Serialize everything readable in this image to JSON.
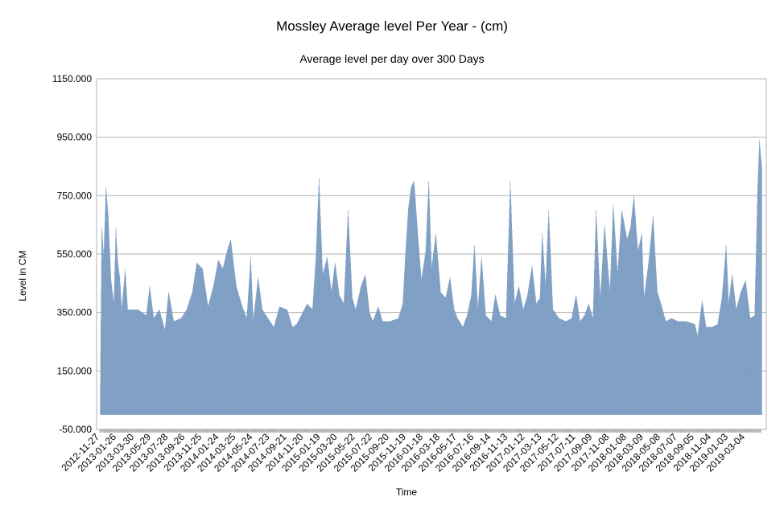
{
  "chart_data": {
    "type": "bar",
    "title": "Mossley Average level Per Year - (cm)",
    "subtitle": "Average level per day over 300 Days",
    "xlabel": "Time",
    "ylabel": "Level in CM",
    "ylim": [
      -50,
      1150
    ],
    "yticks": [
      "-50.000",
      "150.000",
      "350.000",
      "550.000",
      "750.000",
      "950.000",
      "1150.000"
    ],
    "ytick_values": [
      -50,
      150,
      350,
      550,
      750,
      950,
      1150
    ],
    "grid": "horizontal",
    "legend": "none",
    "bar_color": "#7f9fc4",
    "x_start_date": "2012-11-27",
    "x_end_date": "2019-04-30",
    "xtick_labels": [
      "2012-11-27",
      "2013-01-26",
      "2013-03-30",
      "2013-05-29",
      "2013-07-28",
      "2013-09-26",
      "2013-11-25",
      "2014-01-24",
      "2014-03-25",
      "2014-05-24",
      "2014-07-23",
      "2014-09-21",
      "2014-11-20",
      "2015-01-19",
      "2015-03-20",
      "2015-05-22",
      "2015-07-22",
      "2015-09-20",
      "2015-11-19",
      "2016-01-18",
      "2016-03-18",
      "2016-05-17",
      "2016-07-16",
      "2016-09-14",
      "2016-11-13",
      "2017-01-12",
      "2017-03-13",
      "2017-05-12",
      "2017-07-11",
      "2017-09-09",
      "2017-11-08",
      "2018-01-08",
      "2018-03-09",
      "2018-05-08",
      "2018-07-07",
      "2018-09-05",
      "2018-11-04",
      "2019-01-03",
      "2019-03-04"
    ],
    "series": [
      {
        "key_points": [
          {
            "date": "2012-11-27",
            "value": 0
          },
          {
            "date": "2012-12-03",
            "value": 640
          },
          {
            "date": "2012-12-10",
            "value": 540
          },
          {
            "date": "2012-12-18",
            "value": 780
          },
          {
            "date": "2012-12-26",
            "value": 680
          },
          {
            "date": "2013-01-05",
            "value": 460
          },
          {
            "date": "2013-01-15",
            "value": 380
          },
          {
            "date": "2013-01-22",
            "value": 640
          },
          {
            "date": "2013-01-29",
            "value": 520
          },
          {
            "date": "2013-02-05",
            "value": 470
          },
          {
            "date": "2013-02-12",
            "value": 360
          },
          {
            "date": "2013-02-24",
            "value": 500
          },
          {
            "date": "2013-03-05",
            "value": 360
          },
          {
            "date": "2013-04-10",
            "value": 360
          },
          {
            "date": "2013-05-10",
            "value": 340
          },
          {
            "date": "2013-05-22",
            "value": 440
          },
          {
            "date": "2013-06-05",
            "value": 330
          },
          {
            "date": "2013-06-25",
            "value": 360
          },
          {
            "date": "2013-07-15",
            "value": 290
          },
          {
            "date": "2013-07-28",
            "value": 420
          },
          {
            "date": "2013-08-15",
            "value": 320
          },
          {
            "date": "2013-09-10",
            "value": 330
          },
          {
            "date": "2013-09-30",
            "value": 360
          },
          {
            "date": "2013-10-20",
            "value": 420
          },
          {
            "date": "2013-11-05",
            "value": 520
          },
          {
            "date": "2013-11-25",
            "value": 500
          },
          {
            "date": "2013-12-15",
            "value": 370
          },
          {
            "date": "2014-01-05",
            "value": 450
          },
          {
            "date": "2014-01-20",
            "value": 530
          },
          {
            "date": "2014-02-05",
            "value": 500
          },
          {
            "date": "2014-02-20",
            "value": 560
          },
          {
            "date": "2014-03-05",
            "value": 600
          },
          {
            "date": "2014-03-25",
            "value": 440
          },
          {
            "date": "2014-04-15",
            "value": 370
          },
          {
            "date": "2014-05-01",
            "value": 330
          },
          {
            "date": "2014-05-15",
            "value": 540
          },
          {
            "date": "2014-05-24",
            "value": 320
          },
          {
            "date": "2014-06-10",
            "value": 470
          },
          {
            "date": "2014-06-25",
            "value": 360
          },
          {
            "date": "2014-07-15",
            "value": 330
          },
          {
            "date": "2014-08-05",
            "value": 300
          },
          {
            "date": "2014-08-25",
            "value": 370
          },
          {
            "date": "2014-09-21",
            "value": 360
          },
          {
            "date": "2014-10-10",
            "value": 300
          },
          {
            "date": "2014-10-25",
            "value": 310
          },
          {
            "date": "2014-11-10",
            "value": 340
          },
          {
            "date": "2014-12-01",
            "value": 380
          },
          {
            "date": "2014-12-20",
            "value": 360
          },
          {
            "date": "2015-01-01",
            "value": 540
          },
          {
            "date": "2015-01-12",
            "value": 810
          },
          {
            "date": "2015-01-25",
            "value": 480
          },
          {
            "date": "2015-02-10",
            "value": 540
          },
          {
            "date": "2015-02-25",
            "value": 420
          },
          {
            "date": "2015-03-10",
            "value": 520
          },
          {
            "date": "2015-03-25",
            "value": 410
          },
          {
            "date": "2015-04-10",
            "value": 380
          },
          {
            "date": "2015-04-25",
            "value": 700
          },
          {
            "date": "2015-05-10",
            "value": 400
          },
          {
            "date": "2015-05-22",
            "value": 360
          },
          {
            "date": "2015-06-10",
            "value": 440
          },
          {
            "date": "2015-06-25",
            "value": 480
          },
          {
            "date": "2015-07-10",
            "value": 350
          },
          {
            "date": "2015-07-22",
            "value": 320
          },
          {
            "date": "2015-08-10",
            "value": 370
          },
          {
            "date": "2015-08-25",
            "value": 320
          },
          {
            "date": "2015-09-20",
            "value": 320
          },
          {
            "date": "2015-10-20",
            "value": 330
          },
          {
            "date": "2015-11-05",
            "value": 380
          },
          {
            "date": "2015-11-15",
            "value": 560
          },
          {
            "date": "2015-11-25",
            "value": 710
          },
          {
            "date": "2015-12-05",
            "value": 780
          },
          {
            "date": "2015-12-15",
            "value": 800
          },
          {
            "date": "2015-12-28",
            "value": 620
          },
          {
            "date": "2016-01-10",
            "value": 460
          },
          {
            "date": "2016-01-25",
            "value": 560
          },
          {
            "date": "2016-02-05",
            "value": 800
          },
          {
            "date": "2016-02-15",
            "value": 500
          },
          {
            "date": "2016-03-01",
            "value": 620
          },
          {
            "date": "2016-03-18",
            "value": 420
          },
          {
            "date": "2016-04-05",
            "value": 400
          },
          {
            "date": "2016-04-20",
            "value": 470
          },
          {
            "date": "2016-05-05",
            "value": 360
          },
          {
            "date": "2016-05-17",
            "value": 330
          },
          {
            "date": "2016-06-05",
            "value": 300
          },
          {
            "date": "2016-06-20",
            "value": 340
          },
          {
            "date": "2016-07-05",
            "value": 410
          },
          {
            "date": "2016-07-16",
            "value": 580
          },
          {
            "date": "2016-07-28",
            "value": 360
          },
          {
            "date": "2016-08-10",
            "value": 540
          },
          {
            "date": "2016-08-25",
            "value": 340
          },
          {
            "date": "2016-09-14",
            "value": 320
          },
          {
            "date": "2016-09-28",
            "value": 410
          },
          {
            "date": "2016-10-15",
            "value": 340
          },
          {
            "date": "2016-11-05",
            "value": 330
          },
          {
            "date": "2016-11-20",
            "value": 800
          },
          {
            "date": "2016-12-05",
            "value": 380
          },
          {
            "date": "2016-12-20",
            "value": 440
          },
          {
            "date": "2017-01-05",
            "value": 360
          },
          {
            "date": "2017-01-20",
            "value": 410
          },
          {
            "date": "2017-02-05",
            "value": 510
          },
          {
            "date": "2017-02-20",
            "value": 380
          },
          {
            "date": "2017-03-05",
            "value": 400
          },
          {
            "date": "2017-03-13",
            "value": 620
          },
          {
            "date": "2017-03-25",
            "value": 440
          },
          {
            "date": "2017-04-05",
            "value": 700
          },
          {
            "date": "2017-04-20",
            "value": 360
          },
          {
            "date": "2017-05-12",
            "value": 330
          },
          {
            "date": "2017-06-05",
            "value": 320
          },
          {
            "date": "2017-06-25",
            "value": 330
          },
          {
            "date": "2017-07-11",
            "value": 410
          },
          {
            "date": "2017-07-25",
            "value": 320
          },
          {
            "date": "2017-08-10",
            "value": 340
          },
          {
            "date": "2017-08-25",
            "value": 380
          },
          {
            "date": "2017-09-09",
            "value": 330
          },
          {
            "date": "2017-09-20",
            "value": 700
          },
          {
            "date": "2017-10-05",
            "value": 400
          },
          {
            "date": "2017-10-20",
            "value": 650
          },
          {
            "date": "2017-11-08",
            "value": 420
          },
          {
            "date": "2017-11-20",
            "value": 720
          },
          {
            "date": "2017-12-05",
            "value": 480
          },
          {
            "date": "2017-12-20",
            "value": 700
          },
          {
            "date": "2018-01-08",
            "value": 600
          },
          {
            "date": "2018-01-20",
            "value": 640
          },
          {
            "date": "2018-02-01",
            "value": 750
          },
          {
            "date": "2018-02-15",
            "value": 560
          },
          {
            "date": "2018-03-01",
            "value": 620
          },
          {
            "date": "2018-03-09",
            "value": 400
          },
          {
            "date": "2018-03-25",
            "value": 520
          },
          {
            "date": "2018-04-10",
            "value": 680
          },
          {
            "date": "2018-04-25",
            "value": 420
          },
          {
            "date": "2018-05-08",
            "value": 380
          },
          {
            "date": "2018-05-25",
            "value": 320
          },
          {
            "date": "2018-06-15",
            "value": 330
          },
          {
            "date": "2018-07-07",
            "value": 320
          },
          {
            "date": "2018-08-05",
            "value": 320
          },
          {
            "date": "2018-09-05",
            "value": 310
          },
          {
            "date": "2018-09-15",
            "value": 270
          },
          {
            "date": "2018-10-01",
            "value": 390
          },
          {
            "date": "2018-10-15",
            "value": 300
          },
          {
            "date": "2018-11-04",
            "value": 300
          },
          {
            "date": "2018-11-25",
            "value": 310
          },
          {
            "date": "2018-12-10",
            "value": 400
          },
          {
            "date": "2018-12-25",
            "value": 580
          },
          {
            "date": "2019-01-03",
            "value": 380
          },
          {
            "date": "2019-01-15",
            "value": 480
          },
          {
            "date": "2019-01-30",
            "value": 360
          },
          {
            "date": "2019-02-15",
            "value": 420
          },
          {
            "date": "2019-03-04",
            "value": 460
          },
          {
            "date": "2019-03-20",
            "value": 330
          },
          {
            "date": "2019-04-05",
            "value": 340
          },
          {
            "date": "2019-04-15",
            "value": 760
          },
          {
            "date": "2019-04-22",
            "value": 940
          },
          {
            "date": "2019-04-30",
            "value": 850
          }
        ]
      }
    ]
  }
}
